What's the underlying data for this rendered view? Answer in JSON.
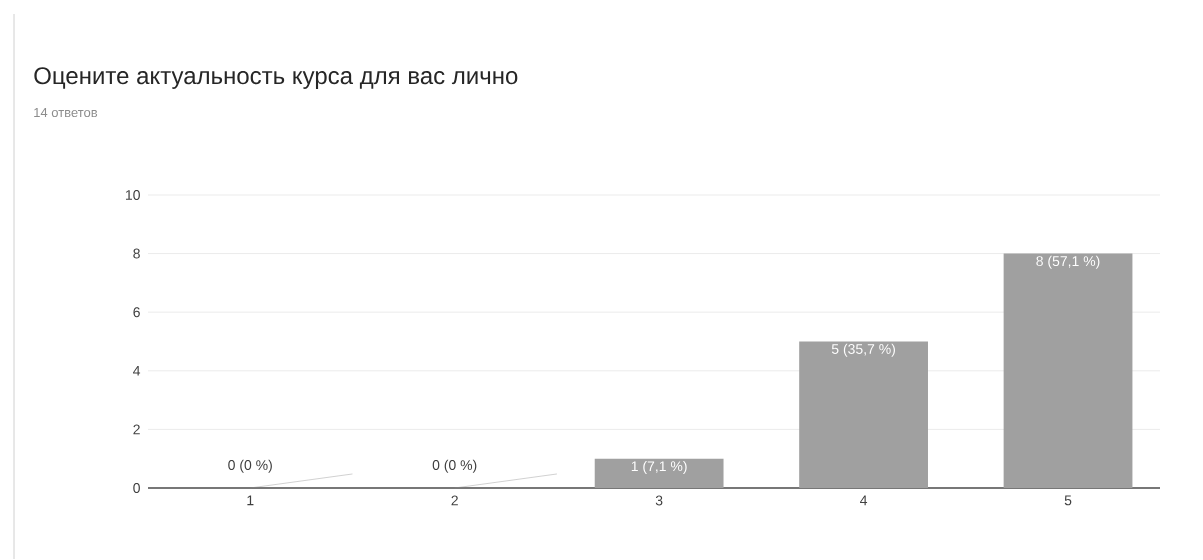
{
  "chart_data": {
    "type": "bar",
    "title": "Оцените актуальность курса для вас лично",
    "subtitle": "14 ответов",
    "categories": [
      "1",
      "2",
      "3",
      "4",
      "5"
    ],
    "values": [
      0,
      0,
      1,
      5,
      8
    ],
    "value_labels": [
      "0 (0 %)",
      "0 (0 %)",
      "1 (7,1 %)",
      "5 (35,7 %)",
      "8 (57,1 %)"
    ],
    "color": "#a0a0a0",
    "ylim": [
      0,
      10
    ],
    "yticks": [
      0,
      2,
      4,
      6,
      8,
      10
    ],
    "grid": "y"
  }
}
